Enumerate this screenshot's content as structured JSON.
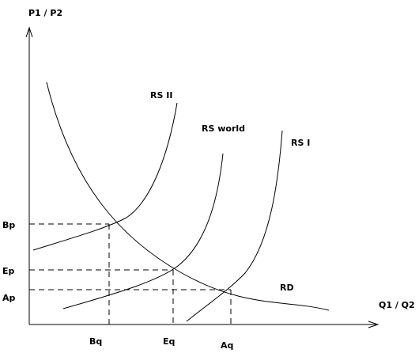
{
  "axes": {
    "y_label": "P1 / P2",
    "x_label": "Q1 / Q2"
  },
  "curves": {
    "rs_ii": "RS II",
    "rs_world": "RS world",
    "rs_i": "RS I",
    "rd": "RD"
  },
  "y_ticks": {
    "bp": "Bp",
    "ep": "Ep",
    "ap": "Ap"
  },
  "x_ticks": {
    "bq": "Bq",
    "eq": "Eq",
    "aq": "Aq"
  }
}
